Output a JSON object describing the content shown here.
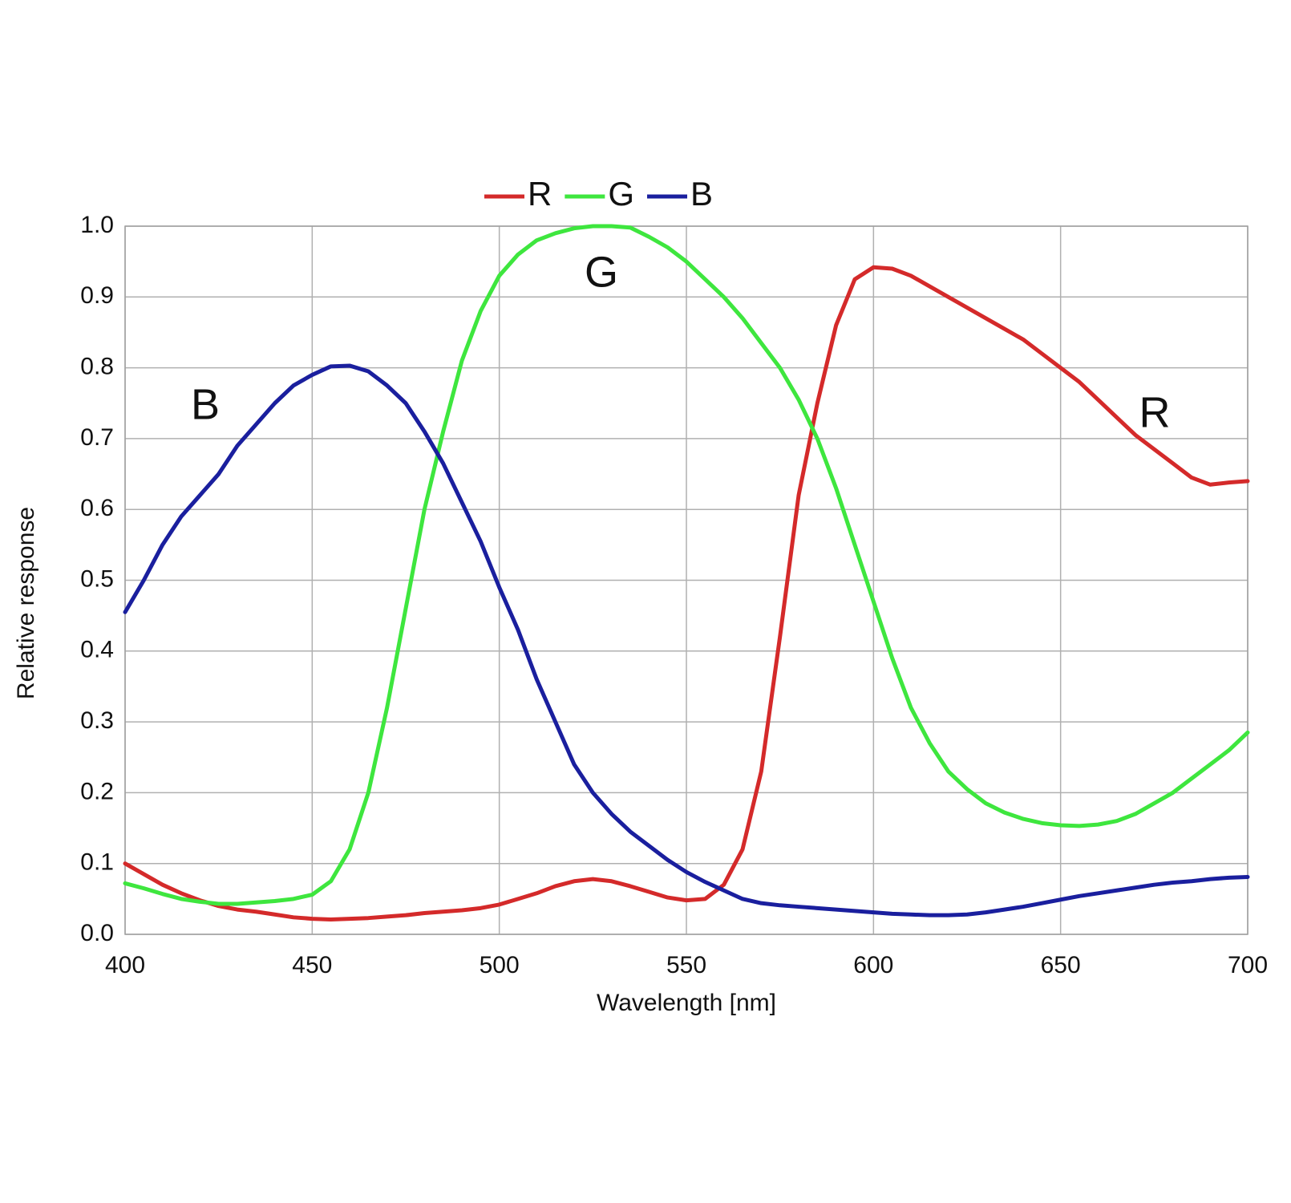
{
  "chart_data": {
    "type": "line",
    "x_label": "Wavelength [nm]",
    "y_label": "Relative response",
    "x": [
      400,
      405,
      410,
      415,
      420,
      425,
      430,
      435,
      440,
      445,
      450,
      455,
      460,
      465,
      470,
      475,
      480,
      485,
      490,
      495,
      500,
      505,
      510,
      515,
      520,
      525,
      530,
      535,
      540,
      545,
      550,
      555,
      560,
      565,
      570,
      575,
      580,
      585,
      590,
      595,
      600,
      605,
      610,
      615,
      620,
      625,
      630,
      635,
      640,
      645,
      650,
      655,
      660,
      665,
      670,
      675,
      680,
      685,
      690,
      695,
      700
    ],
    "series": [
      {
        "name": "R",
        "color": "#d42a2a",
        "values": [
          0.1,
          0.085,
          0.07,
          0.058,
          0.048,
          0.04,
          0.035,
          0.032,
          0.028,
          0.024,
          0.022,
          0.021,
          0.022,
          0.023,
          0.025,
          0.027,
          0.03,
          0.032,
          0.034,
          0.037,
          0.042,
          0.05,
          0.058,
          0.068,
          0.075,
          0.078,
          0.075,
          0.068,
          0.06,
          0.052,
          0.048,
          0.05,
          0.07,
          0.12,
          0.23,
          0.42,
          0.62,
          0.75,
          0.86,
          0.925,
          0.942,
          0.94,
          0.93,
          0.915,
          0.9,
          0.885,
          0.87,
          0.855,
          0.84,
          0.82,
          0.8,
          0.78,
          0.755,
          0.73,
          0.705,
          0.685,
          0.665,
          0.645,
          0.635,
          0.638,
          0.64
        ]
      },
      {
        "name": "G",
        "color": "#3ee63e",
        "values": [
          0.072,
          0.065,
          0.057,
          0.05,
          0.046,
          0.043,
          0.043,
          0.045,
          0.047,
          0.05,
          0.056,
          0.075,
          0.12,
          0.2,
          0.32,
          0.46,
          0.6,
          0.71,
          0.81,
          0.88,
          0.93,
          0.96,
          0.98,
          0.99,
          0.997,
          1.0,
          1.0,
          0.998,
          0.985,
          0.97,
          0.95,
          0.925,
          0.9,
          0.87,
          0.835,
          0.8,
          0.755,
          0.7,
          0.63,
          0.55,
          0.47,
          0.39,
          0.32,
          0.27,
          0.23,
          0.205,
          0.185,
          0.172,
          0.163,
          0.157,
          0.154,
          0.153,
          0.155,
          0.16,
          0.17,
          0.185,
          0.2,
          0.22,
          0.24,
          0.26,
          0.285
        ]
      },
      {
        "name": "B",
        "color": "#1a1f9e",
        "values": [
          0.455,
          0.5,
          0.55,
          0.59,
          0.62,
          0.65,
          0.69,
          0.72,
          0.75,
          0.775,
          0.79,
          0.802,
          0.803,
          0.795,
          0.775,
          0.75,
          0.71,
          0.665,
          0.61,
          0.555,
          0.49,
          0.43,
          0.36,
          0.3,
          0.24,
          0.2,
          0.17,
          0.145,
          0.125,
          0.105,
          0.088,
          0.074,
          0.062,
          0.05,
          0.044,
          0.041,
          0.039,
          0.037,
          0.035,
          0.033,
          0.031,
          0.029,
          0.028,
          0.027,
          0.027,
          0.028,
          0.031,
          0.035,
          0.039,
          0.044,
          0.049,
          0.054,
          0.058,
          0.062,
          0.066,
          0.07,
          0.073,
          0.075,
          0.078,
          0.08,
          0.081
        ]
      }
    ],
    "annotations": [
      "B",
      "G",
      "R"
    ],
    "xlim": [
      400,
      700
    ],
    "xticks": [
      400,
      450,
      500,
      550,
      600,
      650,
      700
    ],
    "ylim": [
      0,
      1
    ],
    "yticks": [
      {
        "value": 0,
        "label": "0.0"
      },
      0.1,
      0.2,
      0.3,
      0.4,
      0.5,
      0.6,
      0.7,
      0.8,
      0.9,
      {
        "value": 1,
        "label": "1.0"
      }
    ],
    "grid": true,
    "legend": "top"
  }
}
